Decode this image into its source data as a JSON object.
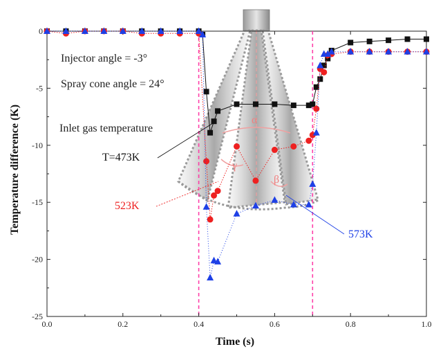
{
  "chart_data": {
    "type": "line",
    "xlabel": "Time (s)",
    "ylabel": "Temperature difference (K)",
    "xlim": [
      0.0,
      1.0
    ],
    "ylim": [
      -25,
      0
    ],
    "xticks": [
      "0.0",
      "0.2",
      "0.4",
      "0.6",
      "0.8",
      "1.0"
    ],
    "yticks": [
      "0",
      "-5",
      "-10",
      "-15",
      "-20",
      "-25"
    ],
    "vlines": [
      0.4,
      0.7
    ],
    "annotations": {
      "injector": "Injector angle = -3°",
      "cone": "Spray cone angle = 24°",
      "inlet": "Inlet gas temperature",
      "t473": "T=473K",
      "t523": "523K",
      "t573": "573K"
    },
    "series": [
      {
        "name": "T=473K",
        "color": "#111111",
        "marker": "square",
        "x": [
          0,
          0.05,
          0.1,
          0.15,
          0.2,
          0.25,
          0.3,
          0.35,
          0.4,
          0.41,
          0.42,
          0.43,
          0.44,
          0.45,
          0.5,
          0.55,
          0.6,
          0.65,
          0.69,
          0.7,
          0.71,
          0.72,
          0.73,
          0.74,
          0.75,
          0.8,
          0.85,
          0.9,
          0.95,
          1.0
        ],
        "y": [
          0,
          0,
          0,
          0,
          0,
          0,
          0,
          0,
          0,
          -0.3,
          -5.3,
          -8.9,
          -7.9,
          -7,
          -6.4,
          -6.4,
          -6.4,
          -6.5,
          -6.5,
          -6.4,
          -4.9,
          -4.2,
          -3.0,
          -2.4,
          -1.7,
          -1.0,
          -0.9,
          -0.8,
          -0.7,
          -0.7
        ]
      },
      {
        "name": "523K",
        "color": "#ee2020",
        "marker": "circle",
        "x": [
          0,
          0.05,
          0.1,
          0.15,
          0.2,
          0.25,
          0.3,
          0.35,
          0.4,
          0.42,
          0.43,
          0.44,
          0.45,
          0.5,
          0.55,
          0.6,
          0.65,
          0.69,
          0.7,
          0.71,
          0.72,
          0.73,
          0.74,
          0.75,
          0.8,
          0.85,
          0.9,
          0.95,
          1.0
        ],
        "y": [
          0,
          -0.2,
          0,
          0,
          0,
          -0.2,
          -0.2,
          -0.2,
          -0.2,
          -11.4,
          -16.5,
          -14.4,
          -14.0,
          -10.1,
          -13.1,
          -10.4,
          -10.1,
          -9.6,
          -9.1,
          -6.8,
          -3.3,
          -3.6,
          -2.1,
          -2.0,
          -1.8,
          -1.8,
          -1.8,
          -1.8,
          -1.8
        ]
      },
      {
        "name": "573K",
        "color": "#1e40e6",
        "marker": "triangle",
        "x": [
          0,
          0.05,
          0.1,
          0.15,
          0.2,
          0.25,
          0.3,
          0.35,
          0.4,
          0.41,
          0.42,
          0.43,
          0.44,
          0.45,
          0.5,
          0.55,
          0.6,
          0.65,
          0.69,
          0.7,
          0.71,
          0.72,
          0.73,
          0.74,
          0.75,
          0.8,
          0.85,
          0.9,
          0.95,
          1.0
        ],
        "y": [
          0,
          0,
          0,
          0,
          0,
          0,
          0,
          0,
          0,
          -0.3,
          -15.4,
          -21.6,
          -20.1,
          -20.2,
          -16.0,
          -15.3,
          -14.8,
          -15.2,
          -15.2,
          -13.4,
          -8.9,
          -3.0,
          -2.0,
          -2.0,
          -1.8,
          -1.8,
          -1.8,
          -1.8,
          -1.8,
          -1.8
        ]
      }
    ]
  }
}
